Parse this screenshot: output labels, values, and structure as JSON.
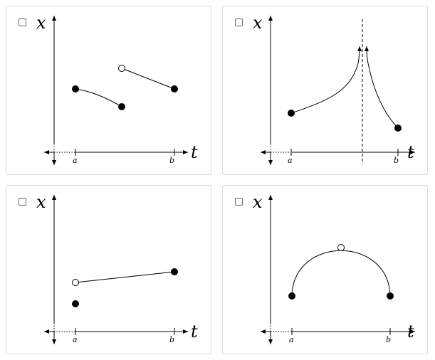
{
  "options": [
    {
      "id": "A",
      "checked": false,
      "y_label": "x",
      "x_label": "t",
      "tick_a": "a",
      "tick_b": "b",
      "description": ""
    },
    {
      "id": "B",
      "checked": false,
      "y_label": "x",
      "x_label": "t",
      "tick_a": "a",
      "tick_b": "b",
      "description": ""
    },
    {
      "id": "C",
      "checked": false,
      "y_label": "x",
      "x_label": "t",
      "tick_a": "a",
      "tick_b": "b",
      "description": ""
    },
    {
      "id": "D",
      "checked": false,
      "y_label": "x",
      "x_label": "t",
      "tick_a": "a",
      "tick_b": "b",
      "description": ""
    }
  ]
}
